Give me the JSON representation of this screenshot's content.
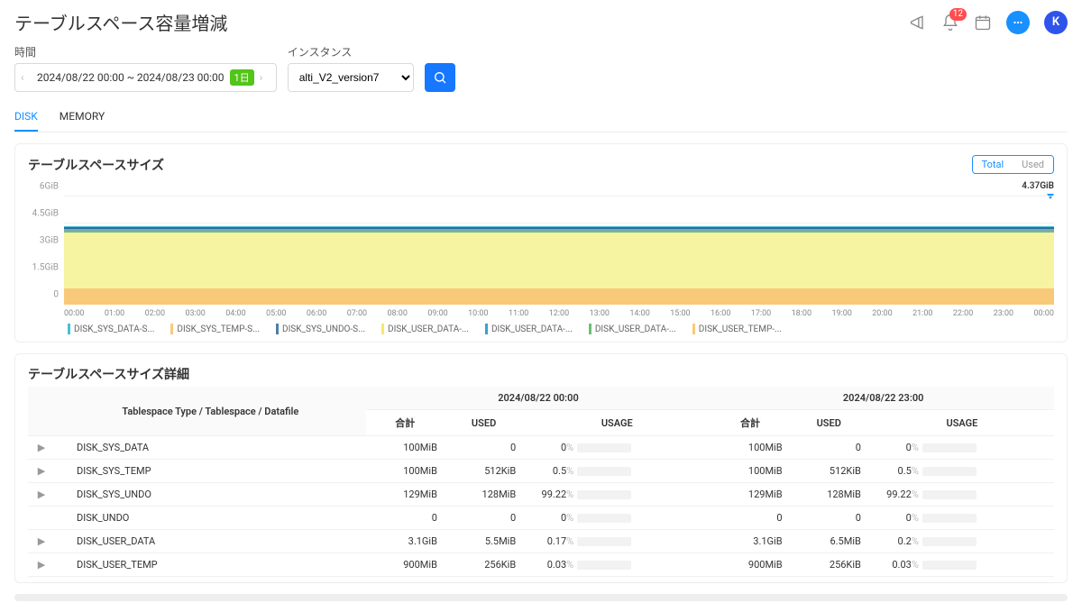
{
  "header": {
    "title": "テーブルスペース容量増減",
    "notifCount": "12",
    "avatarLetter": "K"
  },
  "filters": {
    "timeLabel": "時間",
    "timeRange": "2024/08/22 00:00 ~ 2024/08/23 00:00",
    "rangeTag": "1日",
    "instanceLabel": "インスタンス",
    "instanceValue": "alti_V2_version7"
  },
  "tabs": {
    "disk": "DISK",
    "memory": "MEMORY"
  },
  "chart": {
    "title": "テーブルスペースサイズ",
    "toggleTotal": "Total",
    "toggleUsed": "Used",
    "endLabel": "4.37GiB",
    "yticks": [
      "0",
      "1.5GiB",
      "3GiB",
      "4.5GiB",
      "6GiB"
    ],
    "plotHeight": 120,
    "ymax": 6,
    "bands": [
      {
        "value": 0.9,
        "color": "#f9c97a"
      },
      {
        "value": 3.1,
        "color": "#f6f3a1"
      },
      {
        "value": 0.1,
        "color": "#6fbf73"
      },
      {
        "value": 0.1,
        "color": "#7aa3c9"
      },
      {
        "value": 0.1,
        "color": "#2f6b9a"
      },
      {
        "value": 0.07,
        "color": "#42c3d6"
      }
    ],
    "xticks": [
      "00:00",
      "01:00",
      "02:00",
      "03:00",
      "04:00",
      "05:00",
      "06:00",
      "07:00",
      "08:00",
      "09:00",
      "10:00",
      "11:00",
      "12:00",
      "13:00",
      "14:00",
      "15:00",
      "16:00",
      "17:00",
      "18:00",
      "19:00",
      "20:00",
      "21:00",
      "22:00",
      "23:00",
      "00:00"
    ],
    "legend": [
      {
        "label": "DISK_SYS_DATA-S...",
        "color": "#42c3d6"
      },
      {
        "label": "DISK_SYS_TEMP-S...",
        "color": "#f9c97a"
      },
      {
        "label": "DISK_SYS_UNDO-S...",
        "color": "#4f7fa6"
      },
      {
        "label": "DISK_USER_DATA-...",
        "color": "#f6e96b"
      },
      {
        "label": "DISK_USER_DATA-...",
        "color": "#3aa0d0"
      },
      {
        "label": "DISK_USER_DATA-...",
        "color": "#6fbf73"
      },
      {
        "label": "DISK_USER_TEMP-...",
        "color": "#f9c97a"
      }
    ]
  },
  "table": {
    "title": "テーブルスペースサイズ詳細",
    "groupHeaders": {
      "name": "Tablespace Type / Tablespace / Datafile",
      "g1": "2024/08/22 00:00",
      "g2": "2024/08/22 23:00"
    },
    "cols": {
      "total": "合計",
      "used": "USED",
      "usage": "USAGE"
    },
    "rows": [
      {
        "name": "DISK_SYS_DATA",
        "a_total": "100MiB",
        "a_used": "0",
        "a_usage": "0",
        "a_pct": 0,
        "a_color": "#1890ff",
        "b_total": "100MiB",
        "b_used": "0",
        "b_usage": "0",
        "b_pct": 0,
        "b_color": "#1890ff"
      },
      {
        "name": "DISK_SYS_TEMP",
        "a_total": "100MiB",
        "a_used": "512KiB",
        "a_usage": "0.5",
        "a_pct": 0.5,
        "a_color": "#1890ff",
        "b_total": "100MiB",
        "b_used": "512KiB",
        "b_usage": "0.5",
        "b_pct": 0.5,
        "b_color": "#1890ff"
      },
      {
        "name": "DISK_SYS_UNDO",
        "a_total": "129MiB",
        "a_used": "128MiB",
        "a_usage": "99.22",
        "a_pct": 99.22,
        "a_color": "#ff4d4f",
        "b_total": "129MiB",
        "b_used": "128MiB",
        "b_usage": "99.22",
        "b_pct": 99.22,
        "b_color": "#ff4d4f"
      },
      {
        "name": "DISK_UNDO",
        "a_total": "0",
        "a_used": "0",
        "a_usage": "0",
        "a_pct": 0,
        "a_color": "#1890ff",
        "b_total": "0",
        "b_used": "0",
        "b_usage": "0",
        "b_pct": 0,
        "b_color": "#1890ff",
        "noExpand": true
      },
      {
        "name": "DISK_USER_DATA",
        "a_total": "3.1GiB",
        "a_used": "5.5MiB",
        "a_usage": "0.17",
        "a_pct": 0.17,
        "a_color": "#1890ff",
        "b_total": "3.1GiB",
        "b_used": "6.5MiB",
        "b_usage": "0.2",
        "b_pct": 0.2,
        "b_color": "#1890ff"
      },
      {
        "name": "DISK_USER_TEMP",
        "a_total": "900MiB",
        "a_used": "256KiB",
        "a_usage": "0.03",
        "a_pct": 0.03,
        "a_color": "#1890ff",
        "b_total": "900MiB",
        "b_used": "256KiB",
        "b_usage": "0.03",
        "b_pct": 0.03,
        "b_color": "#1890ff"
      }
    ]
  }
}
